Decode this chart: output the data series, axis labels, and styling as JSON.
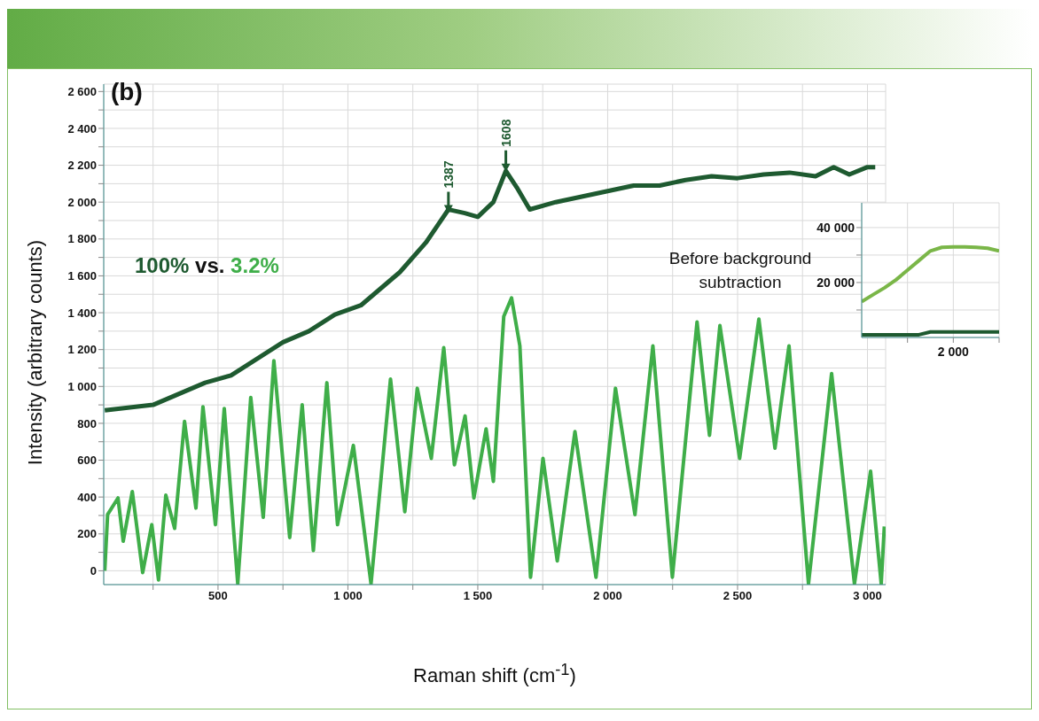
{
  "chart_data": [
    {
      "type": "line",
      "xlabel": "Raman shift (cm$^{-1}$)",
      "ylabel": "Intensity (arbitrary counts)",
      "xlim": [
        60,
        3070
      ],
      "ylim": [
        -75,
        2640
      ],
      "xticks": [
        {
          "value": 250,
          "label": null
        },
        500,
        {
          "value": 750,
          "label": null
        },
        {
          "value": 1000,
          "label": "1 000"
        },
        {
          "value": 1250,
          "label": null
        },
        {
          "value": 1500,
          "label": "1 500"
        },
        {
          "value": 1750,
          "label": null
        },
        {
          "value": 2000,
          "label": "2 000"
        },
        {
          "value": 2250,
          "label": null
        },
        {
          "value": 2500,
          "label": "2 500"
        },
        {
          "value": 2750,
          "label": null
        },
        {
          "value": 3000,
          "label": "3 000"
        }
      ],
      "yticks": [
        0,
        {
          "value": 100,
          "label": null
        },
        200,
        {
          "value": 300,
          "label": null
        },
        400,
        {
          "value": 500,
          "label": null
        },
        600,
        {
          "value": 700,
          "label": null
        },
        800,
        {
          "value": 900,
          "label": null
        },
        {
          "value": 1000,
          "label": "1 000"
        },
        {
          "value": 1100,
          "label": null
        },
        {
          "value": 1200,
          "label": "1 200"
        },
        {
          "value": 1300,
          "label": null
        },
        {
          "value": 1400,
          "label": "1 400"
        },
        {
          "value": 1500,
          "label": null
        },
        {
          "value": 1600,
          "label": "1 600"
        },
        {
          "value": 1700,
          "label": null
        },
        {
          "value": 1800,
          "label": "1 800"
        },
        {
          "value": 1900,
          "label": null
        },
        {
          "value": 2000,
          "label": "2 000"
        },
        {
          "value": 2100,
          "label": null
        },
        {
          "value": 2200,
          "label": "2 200"
        },
        {
          "value": 2300,
          "label": null
        },
        {
          "value": 2400,
          "label": "2 400"
        },
        {
          "value": 2500,
          "label": null
        },
        {
          "value": 2600,
          "label": "2 600"
        }
      ],
      "grid": true,
      "legend": false,
      "marker": "none",
      "line_style": "solid",
      "annotations": [
        "(b)",
        "100% vs. 3.2%",
        {
          "text": "1387",
          "x": 1387,
          "y": 1960
        },
        {
          "text": "1608",
          "x": 1608,
          "y": 2170
        }
      ],
      "series": [
        {
          "color": "#1e5a30",
          "x": [
            64,
            250,
            350,
            450,
            550,
            650,
            750,
            850,
            950,
            1050,
            1150,
            1200,
            1300,
            1387,
            1450,
            1500,
            1560,
            1608,
            1650,
            1700,
            1800,
            1900,
            2000,
            2100,
            2200,
            2300,
            2400,
            2500,
            2600,
            2700,
            2800,
            2870,
            2930,
            3000,
            3030
          ],
          "values": [
            870,
            900,
            960,
            1020,
            1060,
            1150,
            1240,
            1300,
            1390,
            1440,
            1560,
            1620,
            1780,
            1960,
            1940,
            1920,
            2000,
            2170,
            2080,
            1960,
            2000,
            2030,
            2060,
            2090,
            2090,
            2120,
            2140,
            2130,
            2150,
            2160,
            2140,
            2190,
            2150,
            2190,
            2190
          ]
        },
        {
          "color": "#3fae49",
          "x": [
            64,
            75,
            115,
            135,
            170,
            210,
            245,
            271,
            299,
            333,
            371,
            415,
            442,
            490,
            524,
            576,
            626,
            674,
            715,
            776,
            824,
            867,
            919,
            960,
            1021,
            1089,
            1164,
            1219,
            1267,
            1321,
            1369,
            1410,
            1451,
            1485,
            1532,
            1560,
            1600,
            1630,
            1662,
            1703,
            1751,
            1806,
            1874,
            1955,
            2030,
            2105,
            2174,
            2249,
            2344,
            2392,
            2432,
            2508,
            2582,
            2644,
            2698,
            2773,
            2862,
            2950,
            3012,
            3053,
            3065
          ],
          "values": [
            0,
            305,
            395,
            160,
            430,
            -10,
            250,
            -50,
            410,
            230,
            810,
            340,
            890,
            250,
            880,
            -70,
            940,
            290,
            1140,
            180,
            900,
            110,
            1020,
            250,
            680,
            -70,
            1040,
            320,
            990,
            610,
            1210,
            575,
            840,
            395,
            770,
            485,
            1380,
            1480,
            1220,
            -35,
            610,
            54,
            755,
            -35,
            990,
            305,
            1220,
            -35,
            1350,
            735,
            1330,
            610,
            1365,
            665,
            1220,
            -70,
            1070,
            -70,
            540,
            -70,
            240
          ]
        }
      ]
    },
    {
      "type": "line",
      "categories": [
        null,
        null,
        null,
        null,
        null,
        null,
        null,
        null,
        null,
        null,
        null,
        null,
        null
      ],
      "ylim": [
        0,
        49000
      ],
      "yticks": [
        {
          "value": 10000,
          "label": null
        },
        {
          "value": 20000,
          "label": "20 000"
        },
        {
          "value": 30000,
          "label": null
        },
        {
          "value": 40000,
          "label": "40 000"
        }
      ],
      "grid": true,
      "legend": false,
      "marker": "none",
      "line_style": "solid",
      "annotations": [
        "Before background subtraction",
        "2 000"
      ],
      "series": [
        {
          "color": "#7ab648",
          "values": [
            13000,
            15600,
            18100,
            21000,
            24500,
            28000,
            31500,
            32800,
            33000,
            33000,
            32800,
            32500,
            31500
          ]
        },
        {
          "color": "#1e5a30",
          "values": [
            1000,
            1000,
            1000,
            1000,
            1000,
            1000,
            2000,
            2000,
            2000,
            2000,
            2000,
            2000,
            2000
          ]
        }
      ]
    }
  ]
}
